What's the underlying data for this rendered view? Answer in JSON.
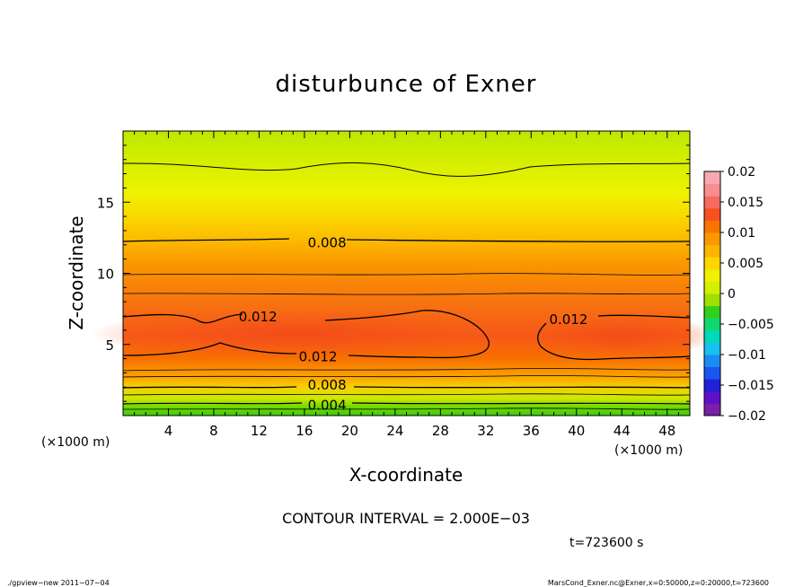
{
  "chart_data": {
    "type": "heatmap",
    "title": "disturbunce of Exner",
    "xlabel": "X-coordinate",
    "ylabel": "Z-coordinate",
    "x_unit": "(×1000 m)",
    "y_unit": "(×1000 m)",
    "xlim": [
      0,
      50
    ],
    "ylim": [
      0,
      20
    ],
    "x_ticks": [
      4,
      8,
      12,
      16,
      20,
      24,
      28,
      32,
      36,
      40,
      44,
      48
    ],
    "y_ticks": [
      5,
      10,
      15
    ],
    "colorbar": {
      "min": -0.02,
      "max": 0.02,
      "tick_values": [
        0.02,
        0.015,
        0.01,
        0.005,
        0,
        -0.005,
        -0.01,
        -0.015,
        -0.02
      ],
      "tick_labels": [
        "0.02",
        "0.015",
        "0.01",
        "0.005",
        "0",
        "−0.005",
        "−0.01",
        "−0.015",
        "−0.02"
      ],
      "colors": [
        "#7a1fa8",
        "#5e10c8",
        "#2020d8",
        "#1a55f0",
        "#1a8cf5",
        "#18c0f0",
        "#00d8b8",
        "#10d870",
        "#30d020",
        "#9ee000",
        "#d4f000",
        "#f0f000",
        "#fdd600",
        "#fdb400",
        "#fb9800",
        "#fb7400",
        "#f85020",
        "#f66a60",
        "#f88c90",
        "#f8a8b0"
      ]
    },
    "contour_labels": [
      {
        "text": "0.008",
        "x": 18.0,
        "z": 12.2
      },
      {
        "text": "0.012",
        "x": 11.9,
        "z": 7.0
      },
      {
        "text": "0.012",
        "x": 17.2,
        "z": 4.2
      },
      {
        "text": "0.012",
        "x": 39.3,
        "z": 6.8
      },
      {
        "text": "0.008",
        "x": 18.0,
        "z": 2.2
      },
      {
        "text": "0.004",
        "x": 18.0,
        "z": 0.8
      }
    ],
    "contour_interval": "CONTOUR INTERVAL = 2.000E−03",
    "time_label": "t=723600 s"
  },
  "footer": {
    "left": "./gpview−new   2011−07−04",
    "right": "MarsCond_Exner.nc@Exner,x=0:50000,z=0:20000,t=723600"
  }
}
